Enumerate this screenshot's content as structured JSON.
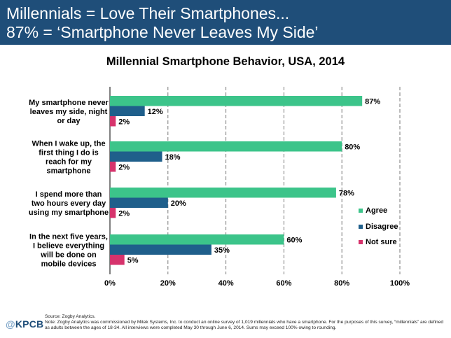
{
  "header": {
    "line1": "Millennials = Love Their Smartphones...",
    "line2": "87% = ‘Smartphone Never Leaves My Side’"
  },
  "footer": {
    "logo_at": "@",
    "logo_name": "KPCB",
    "source": "Source: Zogby Analytics.",
    "note": "Note: Zogby Analytics was commissioned by Mitek Systems, Inc. to conduct an online survey of 1,019 millennials who have a smartphone. For the purposes of this survey, “millennials” are defined as adults between the ages of 18-34. All interviews were completed May 30 through June 6, 2014. Sums may exceed 100% owing to rounding."
  },
  "chart_data": {
    "type": "bar",
    "orientation": "horizontal",
    "title": "Millennial Smartphone Behavior, USA, 2014",
    "categories": [
      [
        "My smartphone never",
        "leaves my side, night",
        "or day"
      ],
      [
        "When I wake up, the",
        "first thing I do is",
        "reach for my",
        "smartphone"
      ],
      [
        "I spend more than",
        "two hours every day",
        "using my smartphone"
      ],
      [
        "In the next five years,",
        "I believe everything",
        "will be done on",
        "mobile devices"
      ]
    ],
    "series": [
      {
        "name": "Agree",
        "color": "#3cc48a",
        "values": [
          87,
          80,
          78,
          60
        ]
      },
      {
        "name": "Disagree",
        "color": "#1f5f8b",
        "values": [
          12,
          18,
          20,
          35
        ]
      },
      {
        "name": "Not sure",
        "color": "#d6336c",
        "values": [
          2,
          2,
          2,
          5
        ]
      }
    ],
    "value_suffix": "%",
    "xlim": [
      0,
      100
    ],
    "xticks": [
      0,
      20,
      40,
      60,
      80,
      100
    ],
    "xtick_labels": [
      "0%",
      "20%",
      "40%",
      "60%",
      "80%",
      "100%"
    ],
    "grid": "vertical dashed",
    "legend": "right"
  }
}
